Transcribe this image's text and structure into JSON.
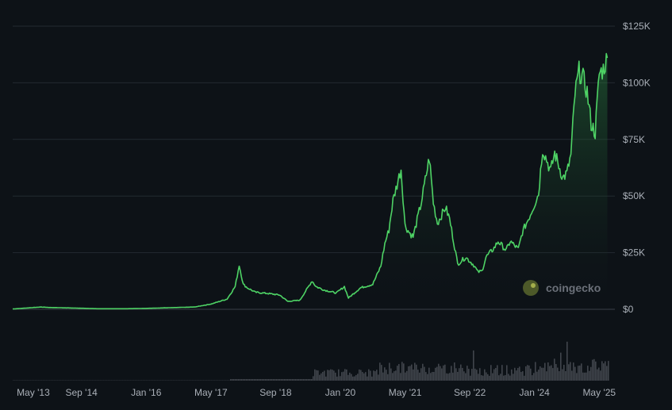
{
  "chart_data": {
    "type": "area",
    "title": "",
    "xlabel": "",
    "ylabel": "",
    "ylim": [
      0,
      125000
    ],
    "grid": true,
    "line_color": "#4ed365",
    "y_ticks": [
      {
        "value": 0,
        "label": "$0"
      },
      {
        "value": 25000,
        "label": "$25K"
      },
      {
        "value": 50000,
        "label": "$50K"
      },
      {
        "value": 75000,
        "label": "$75K"
      },
      {
        "value": 100000,
        "label": "$100K"
      },
      {
        "value": 125000,
        "label": "$125K"
      }
    ],
    "x_ticks": [
      {
        "date": "2013-05",
        "label": "May '13"
      },
      {
        "date": "2014-09",
        "label": "Sep '14"
      },
      {
        "date": "2016-01",
        "label": "Jan '16"
      },
      {
        "date": "2017-05",
        "label": "May '17"
      },
      {
        "date": "2018-09",
        "label": "Sep '18"
      },
      {
        "date": "2020-01",
        "label": "Jan '20"
      },
      {
        "date": "2021-05",
        "label": "May '21"
      },
      {
        "date": "2022-09",
        "label": "Sep '22"
      },
      {
        "date": "2024-01",
        "label": "Jan '24"
      },
      {
        "date": "2025-05",
        "label": "May '25"
      }
    ],
    "series": [
      {
        "values": [
          [
            "2013-04",
            130
          ],
          [
            "2013-11",
            1000
          ],
          [
            "2014-01",
            800
          ],
          [
            "2014-06",
            600
          ],
          [
            "2015-01",
            250
          ],
          [
            "2015-08",
            250
          ],
          [
            "2016-01",
            400
          ],
          [
            "2016-06",
            650
          ],
          [
            "2017-01",
            1000
          ],
          [
            "2017-05",
            2300
          ],
          [
            "2017-09",
            4500
          ],
          [
            "2017-11",
            10000
          ],
          [
            "2017-12",
            19500
          ],
          [
            "2018-01",
            11000
          ],
          [
            "2018-02",
            9500
          ],
          [
            "2018-04",
            7500
          ],
          [
            "2018-07",
            7000
          ],
          [
            "2018-10",
            6300
          ],
          [
            "2018-12",
            3500
          ],
          [
            "2019-03",
            4000
          ],
          [
            "2019-06",
            12500
          ],
          [
            "2019-07",
            10000
          ],
          [
            "2019-09",
            8500
          ],
          [
            "2019-12",
            7200
          ],
          [
            "2020-02",
            10000
          ],
          [
            "2020-03",
            5000
          ],
          [
            "2020-06",
            9500
          ],
          [
            "2020-09",
            11000
          ],
          [
            "2020-11",
            19000
          ],
          [
            "2020-12",
            29000
          ],
          [
            "2021-01",
            35000
          ],
          [
            "2021-02",
            48000
          ],
          [
            "2021-04",
            62000
          ],
          [
            "2021-05",
            37000
          ],
          [
            "2021-06",
            34000
          ],
          [
            "2021-07",
            32000
          ],
          [
            "2021-09",
            47000
          ],
          [
            "2021-11",
            67000
          ],
          [
            "2021-12",
            47000
          ],
          [
            "2022-01",
            38000
          ],
          [
            "2022-03",
            45000
          ],
          [
            "2022-04",
            40000
          ],
          [
            "2022-05",
            30000
          ],
          [
            "2022-06",
            20000
          ],
          [
            "2022-08",
            23000
          ],
          [
            "2022-10",
            19500
          ],
          [
            "2022-11",
            16500
          ],
          [
            "2022-12",
            16800
          ],
          [
            "2023-01",
            23000
          ],
          [
            "2023-03",
            27000
          ],
          [
            "2023-04",
            30000
          ],
          [
            "2023-06",
            26000
          ],
          [
            "2023-07",
            30000
          ],
          [
            "2023-09",
            26500
          ],
          [
            "2023-10",
            34000
          ],
          [
            "2023-12",
            42000
          ],
          [
            "2024-02",
            51000
          ],
          [
            "2024-03",
            71000
          ],
          [
            "2024-05",
            61000
          ],
          [
            "2024-06",
            69000
          ],
          [
            "2024-08",
            58000
          ],
          [
            "2024-09",
            60000
          ],
          [
            "2024-10",
            68000
          ],
          [
            "2024-11",
            95000
          ],
          [
            "2024-12",
            105000
          ],
          [
            "2025-01",
            102000
          ],
          [
            "2025-02",
            96000
          ],
          [
            "2025-03",
            82000
          ],
          [
            "2025-04",
            78000
          ],
          [
            "2025-05",
            104000
          ],
          [
            "2025-06",
            106000
          ],
          [
            "2025-07",
            111000
          ]
        ]
      }
    ],
    "volume_color": "#40454c",
    "watermark": "coingecko"
  }
}
